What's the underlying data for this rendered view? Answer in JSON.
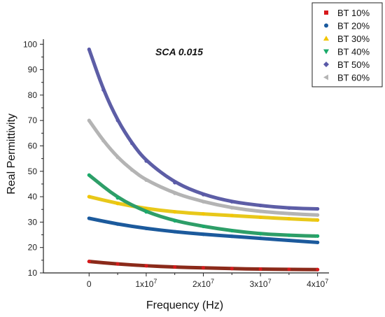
{
  "chart_data": {
    "type": "scatter",
    "annotation": "SCA 0.015",
    "xlabel": "Frequency (Hz)",
    "ylabel": "Real Permittivity",
    "xlim": [
      -8000000,
      42000000
    ],
    "ylim": [
      10,
      102
    ],
    "x_ticks": [
      {
        "value": 0,
        "mant": "0",
        "exp": ""
      },
      {
        "value": 10000000,
        "mant": "1x10",
        "exp": "7"
      },
      {
        "value": 20000000,
        "mant": "2x10",
        "exp": "7"
      },
      {
        "value": 30000000,
        "mant": "3x10",
        "exp": "7"
      },
      {
        "value": 40000000,
        "mant": "4x10",
        "exp": "7"
      }
    ],
    "y_ticks": [
      10,
      20,
      30,
      40,
      50,
      60,
      70,
      80,
      90,
      100
    ],
    "legend_position": "top-right",
    "series": [
      {
        "name": "BT 10%",
        "color": "#d7191c",
        "line_color": "#8b2a1a",
        "marker": "square",
        "x": [
          0,
          5000000,
          10000000,
          15000000,
          20000000,
          25000000,
          30000000,
          35000000,
          40000000
        ],
        "values": [
          14.5,
          13.5,
          12.8,
          12.3,
          12.0,
          11.7,
          11.5,
          11.4,
          11.3
        ]
      },
      {
        "name": "BT 20%",
        "color": "#1a5a9e",
        "line_color": "#1c5a9c",
        "marker": "circle",
        "x": [
          0,
          5000000,
          10000000,
          15000000,
          20000000,
          25000000,
          30000000,
          35000000,
          40000000
        ],
        "values": [
          31.5,
          29.2,
          27.5,
          26.2,
          25.2,
          24.4,
          23.6,
          22.8,
          22.0
        ]
      },
      {
        "name": "BT 30%",
        "color": "#f2c500",
        "line_color": "#e8c81a",
        "marker": "triangle-up",
        "x": [
          0,
          5000000,
          10000000,
          15000000,
          20000000,
          25000000,
          30000000,
          35000000,
          40000000
        ],
        "values": [
          40.0,
          37.3,
          35.3,
          34.0,
          33.2,
          32.6,
          31.9,
          31.3,
          30.8
        ]
      },
      {
        "name": "BT 40%",
        "color": "#1aaa6a",
        "line_color": "#2e9e68",
        "marker": "triangle-down",
        "x": [
          0,
          5000000,
          10000000,
          15000000,
          20000000,
          25000000,
          30000000,
          35000000,
          40000000
        ],
        "values": [
          48.5,
          39.5,
          34.0,
          30.5,
          28.3,
          26.6,
          25.4,
          24.8,
          24.5
        ]
      },
      {
        "name": "BT 50%",
        "color": "#5a5aa8",
        "line_color": "#5d5ea6",
        "marker": "diamond",
        "x": [
          0,
          2500000,
          5000000,
          7500000,
          10000000,
          15000000,
          20000000,
          25000000,
          30000000,
          35000000,
          40000000
        ],
        "values": [
          98.0,
          82.0,
          70.0,
          61.0,
          54.0,
          45.5,
          40.8,
          38.0,
          36.5,
          35.5,
          35.2
        ]
      },
      {
        "name": "BT 60%",
        "color": "#b4b4b4",
        "line_color": "#b4b4b4",
        "marker": "triangle-left",
        "x": [
          0,
          2500000,
          5000000,
          7500000,
          10000000,
          15000000,
          20000000,
          25000000,
          30000000,
          35000000,
          40000000
        ],
        "values": [
          70.0,
          62.0,
          55.5,
          50.5,
          46.5,
          41.3,
          38.0,
          35.6,
          34.2,
          33.3,
          32.8
        ]
      }
    ]
  }
}
